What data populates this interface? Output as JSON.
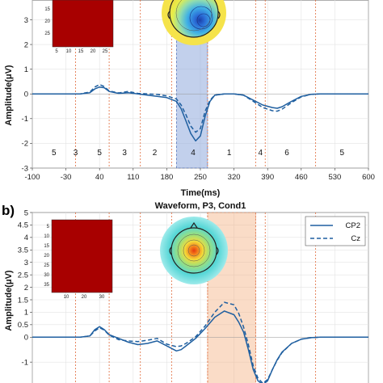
{
  "chart_data": [
    {
      "type": "line",
      "panel_label": "",
      "title": "",
      "xlabel": "Time(ms)",
      "ylabel": "Amplitude(μV)",
      "xlim": [
        -100,
        600
      ],
      "ylim": [
        -3,
        3.8
      ],
      "xticks": [
        "-100",
        "-30",
        "40",
        "110",
        "180",
        "250",
        "320",
        "390",
        "460",
        "530",
        "600"
      ],
      "yticks": [
        "-3",
        "-2",
        "-1",
        "0",
        "1",
        "2",
        "3"
      ],
      "grid": true,
      "highlight": {
        "x0": 200,
        "x1": 265,
        "color": "#8faadc"
      },
      "boundaries": [
        -10,
        60,
        125,
        190,
        265,
        365,
        385,
        490
      ],
      "component_labels": [
        {
          "x": -55,
          "text": "5"
        },
        {
          "x": -10,
          "text": "3"
        },
        {
          "x": 40,
          "text": "5"
        },
        {
          "x": 92,
          "text": "3"
        },
        {
          "x": 155,
          "text": "2"
        },
        {
          "x": 235,
          "text": "4"
        },
        {
          "x": 310,
          "text": "1"
        },
        {
          "x": 375,
          "text": "4"
        },
        {
          "x": 430,
          "text": "6"
        },
        {
          "x": 545,
          "text": "5"
        }
      ],
      "series": [
        {
          "style": "solid",
          "x": [
            -100,
            -60,
            -20,
            0,
            20,
            30,
            40,
            50,
            60,
            80,
            100,
            120,
            140,
            160,
            180,
            200,
            210,
            220,
            230,
            240,
            250,
            260,
            270,
            280,
            300,
            320,
            340,
            360,
            380,
            400,
            410,
            420,
            440,
            460,
            480,
            500,
            540,
            600
          ],
          "y": [
            0,
            0,
            0,
            0,
            0.05,
            0.2,
            0.28,
            0.25,
            0.1,
            0.02,
            0.05,
            0,
            -0.05,
            -0.1,
            -0.15,
            -0.3,
            -0.6,
            -1.1,
            -1.6,
            -1.9,
            -1.7,
            -0.9,
            -0.3,
            -0.05,
            0,
            0,
            -0.05,
            -0.25,
            -0.45,
            -0.55,
            -0.58,
            -0.52,
            -0.3,
            -0.1,
            -0.02,
            0,
            0,
            0
          ]
        },
        {
          "style": "dashed",
          "x": [
            -100,
            -60,
            -20,
            0,
            20,
            30,
            40,
            50,
            60,
            80,
            100,
            120,
            140,
            160,
            180,
            200,
            210,
            220,
            230,
            240,
            250,
            260,
            270,
            280,
            300,
            320,
            340,
            360,
            380,
            400,
            410,
            420,
            440,
            460,
            480,
            500,
            540,
            600
          ],
          "y": [
            0,
            0,
            0,
            0,
            0.08,
            0.28,
            0.38,
            0.3,
            0.12,
            0.04,
            0.1,
            0.02,
            0,
            -0.02,
            -0.08,
            -0.2,
            -0.45,
            -0.85,
            -1.3,
            -1.55,
            -1.4,
            -0.7,
            -0.25,
            -0.05,
            0,
            0,
            -0.05,
            -0.3,
            -0.55,
            -0.68,
            -0.7,
            -0.62,
            -0.35,
            -0.12,
            -0.02,
            0,
            0,
            0
          ]
        }
      ],
      "inset_heatmap": {
        "color": "#a80000",
        "xticks": [
          "5",
          "10",
          "15",
          "20",
          "25"
        ],
        "yticks": [
          "15",
          "20",
          "25"
        ]
      },
      "inset_topomap": {
        "type": "scalp map",
        "peak_color": "#1b3fa8"
      }
    },
    {
      "type": "line",
      "panel_label": "b)",
      "title": "Waveform, P3, Cond1",
      "xlabel": "",
      "ylabel": "Amplitude(μV)",
      "xlim": [
        -100,
        600
      ],
      "ylim": [
        -2,
        5
      ],
      "xticks": [],
      "yticks": [
        "-1",
        "0",
        "0.5",
        "1",
        "1.5",
        "2",
        "2.5",
        "3",
        "3.5",
        "4",
        "4.5",
        "5"
      ],
      "grid": true,
      "highlight": {
        "x0": 265,
        "x1": 365,
        "color": "#f4b183"
      },
      "boundaries": [
        -10,
        60,
        125,
        190,
        265,
        365,
        385,
        490
      ],
      "legend": {
        "position": "top-right",
        "entries": [
          {
            "label": "CP2",
            "style": "solid"
          },
          {
            "label": "Cz",
            "style": "dashed"
          }
        ]
      },
      "series": [
        {
          "name": "CP2",
          "style": "solid",
          "x": [
            -100,
            -40,
            0,
            20,
            30,
            40,
            50,
            60,
            80,
            100,
            120,
            140,
            160,
            180,
            200,
            210,
            220,
            230,
            240,
            260,
            280,
            300,
            320,
            330,
            340,
            350,
            360,
            370,
            380,
            390,
            400,
            410,
            420,
            440,
            460,
            480,
            500,
            540,
            600
          ],
          "y": [
            0,
            0,
            0,
            0.05,
            0.3,
            0.42,
            0.3,
            0.1,
            -0.05,
            -0.2,
            -0.3,
            -0.25,
            -0.15,
            -0.35,
            -0.55,
            -0.5,
            -0.35,
            -0.2,
            -0.05,
            0.35,
            0.8,
            1.05,
            0.9,
            0.6,
            0.2,
            -0.5,
            -1.3,
            -1.75,
            -1.9,
            -1.75,
            -1.3,
            -0.9,
            -0.6,
            -0.25,
            -0.08,
            -0.02,
            0,
            0,
            0
          ]
        },
        {
          "name": "Cz",
          "style": "dashed",
          "x": [
            -100,
            -40,
            0,
            20,
            30,
            40,
            50,
            60,
            80,
            100,
            120,
            140,
            160,
            180,
            200,
            210,
            220,
            230,
            240,
            260,
            280,
            300,
            320,
            330,
            340,
            350,
            360,
            370,
            380,
            390,
            400,
            410,
            420,
            440,
            460,
            480,
            500,
            540,
            600
          ],
          "y": [
            0,
            0,
            0,
            0.05,
            0.25,
            0.38,
            0.28,
            0.08,
            -0.1,
            -0.15,
            -0.18,
            -0.12,
            -0.05,
            -0.28,
            -0.38,
            -0.35,
            -0.25,
            -0.12,
            0.02,
            0.45,
            1.0,
            1.4,
            1.3,
            0.95,
            0.4,
            -0.3,
            -1.15,
            -1.65,
            -1.85,
            -1.7,
            -1.3,
            -0.92,
            -0.62,
            -0.25,
            -0.08,
            -0.02,
            0,
            0,
            0
          ]
        }
      ],
      "inset_heatmap": {
        "color": "#a80000",
        "xticks": [
          "10",
          "20",
          "30"
        ],
        "yticks": [
          "5",
          "10",
          "15",
          "20",
          "25",
          "30",
          "35"
        ]
      },
      "inset_topomap": {
        "type": "scalp map",
        "peak_color": "#e63b10"
      }
    }
  ]
}
